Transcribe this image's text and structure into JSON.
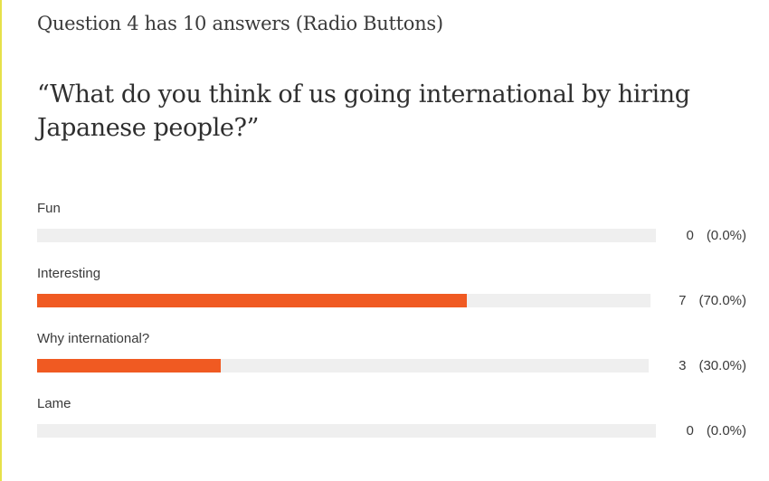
{
  "question": {
    "header": "Question 4 has 10 answers (Radio Buttons)",
    "text": "“What do you think of us going international by hiring Japanese people?”"
  },
  "answers": [
    {
      "label": "Fun",
      "count": "0",
      "percent": "(0.0%)",
      "fraction": 0.0
    },
    {
      "label": "Interesting",
      "count": "7",
      "percent": "(70.0%)",
      "fraction": 0.7
    },
    {
      "label": "Why international?",
      "count": "3",
      "percent": "(30.0%)",
      "fraction": 0.3
    },
    {
      "label": "Lame",
      "count": "0",
      "percent": "(0.0%)",
      "fraction": 0.0
    }
  ],
  "colors": {
    "accent": "#f05a22",
    "track": "#efefef"
  }
}
